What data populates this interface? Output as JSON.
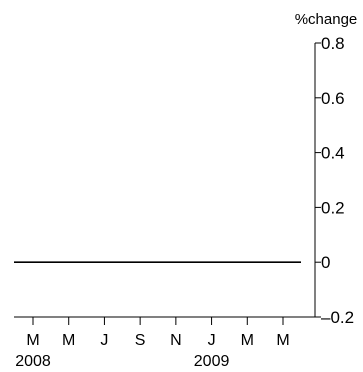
{
  "chart_data": {
    "type": "line",
    "ylabel": "%change",
    "ylim": [
      -0.2,
      0.8
    ],
    "y_ticks": [
      {
        "value": 0.8,
        "label": "0.8"
      },
      {
        "value": 0.6,
        "label": "0.6"
      },
      {
        "value": 0.4,
        "label": "0.4"
      },
      {
        "value": 0.2,
        "label": "0.2"
      },
      {
        "value": 0,
        "label": "0"
      },
      {
        "value": -0.2,
        "label": "–0.2"
      }
    ],
    "x_ticks": [
      "M",
      "M",
      "J",
      "S",
      "N",
      "J",
      "M",
      "M"
    ],
    "year_labels": [
      {
        "label": "2008",
        "tick_index": 0
      },
      {
        "label": "2009",
        "tick_index": 5
      }
    ],
    "series": [
      {
        "values": [
          0,
          0,
          0,
          0,
          0,
          0,
          0,
          0
        ]
      }
    ],
    "y_axis_position": "right",
    "grid": false,
    "colors": {
      "axis": "#000000",
      "series": "#000000"
    }
  }
}
